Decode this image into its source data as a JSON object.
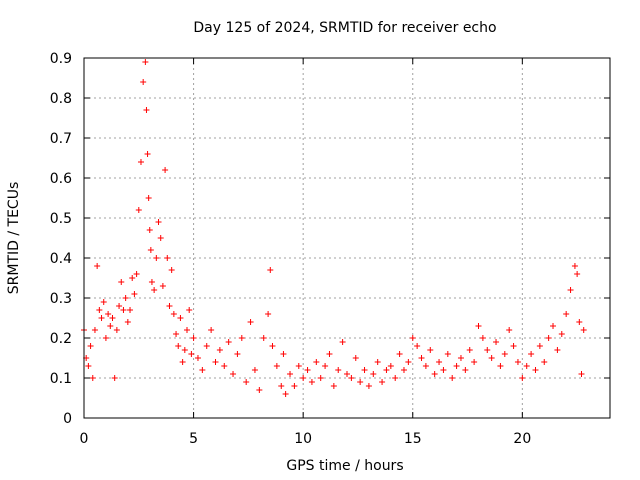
{
  "chart_data": {
    "type": "scatter",
    "title": "Day 125 of 2024, SRMTID for receiver echo",
    "xlabel": "GPS time / hours",
    "ylabel": "SRMTID / TECUs",
    "xlim": [
      0,
      24
    ],
    "ylim": [
      0,
      0.9
    ],
    "xticks": [
      0,
      5,
      10,
      15,
      20
    ],
    "yticks": [
      0,
      0.1,
      0.2,
      0.3,
      0.4,
      0.5,
      0.6,
      0.7,
      0.8,
      0.9
    ],
    "xtick_labels": [
      "0",
      "5",
      "10",
      "15",
      "20"
    ],
    "ytick_labels": [
      "0",
      "0.1",
      "0.2",
      "0.3",
      "0.4",
      "0.5",
      "0.6",
      "0.7",
      "0.8",
      "0.9"
    ],
    "grid": true,
    "marker": "+",
    "color": "#ff0000",
    "series": [
      {
        "name": "SRMTID",
        "x": [
          0.0,
          0.1,
          0.2,
          0.3,
          0.4,
          0.5,
          0.6,
          0.7,
          0.8,
          0.9,
          1.0,
          1.1,
          1.2,
          1.3,
          1.4,
          1.5,
          1.6,
          1.7,
          1.8,
          1.9,
          2.0,
          2.1,
          2.2,
          2.3,
          2.4,
          2.5,
          2.6,
          2.7,
          2.8,
          2.85,
          2.9,
          2.95,
          3.0,
          3.05,
          3.1,
          3.2,
          3.3,
          3.4,
          3.5,
          3.6,
          3.7,
          3.8,
          3.9,
          4.0,
          4.1,
          4.2,
          4.3,
          4.4,
          4.5,
          4.6,
          4.7,
          4.8,
          4.9,
          5.0,
          5.2,
          5.4,
          5.6,
          5.8,
          6.0,
          6.2,
          6.4,
          6.6,
          6.8,
          7.0,
          7.2,
          7.4,
          7.6,
          7.8,
          8.0,
          8.2,
          8.4,
          8.5,
          8.6,
          8.8,
          9.0,
          9.1,
          9.2,
          9.4,
          9.6,
          9.8,
          10.0,
          10.2,
          10.4,
          10.6,
          10.8,
          11.0,
          11.2,
          11.4,
          11.6,
          11.8,
          12.0,
          12.2,
          12.4,
          12.6,
          12.8,
          13.0,
          13.2,
          13.4,
          13.6,
          13.8,
          14.0,
          14.2,
          14.4,
          14.6,
          14.8,
          15.0,
          15.2,
          15.4,
          15.6,
          15.8,
          16.0,
          16.2,
          16.4,
          16.6,
          16.8,
          17.0,
          17.2,
          17.4,
          17.6,
          17.8,
          18.0,
          18.2,
          18.4,
          18.6,
          18.8,
          19.0,
          19.2,
          19.4,
          19.6,
          19.8,
          20.0,
          20.2,
          20.4,
          20.6,
          20.8,
          21.0,
          21.2,
          21.4,
          21.6,
          21.8,
          22.0,
          22.2,
          22.4,
          22.5,
          22.6,
          22.7,
          22.8
        ],
        "y": [
          0.22,
          0.15,
          0.13,
          0.18,
          0.1,
          0.22,
          0.38,
          0.27,
          0.25,
          0.29,
          0.2,
          0.26,
          0.23,
          0.25,
          0.1,
          0.22,
          0.28,
          0.34,
          0.27,
          0.3,
          0.24,
          0.27,
          0.35,
          0.31,
          0.36,
          0.52,
          0.64,
          0.84,
          0.89,
          0.77,
          0.66,
          0.55,
          0.47,
          0.42,
          0.34,
          0.32,
          0.4,
          0.49,
          0.45,
          0.33,
          0.62,
          0.4,
          0.28,
          0.37,
          0.26,
          0.21,
          0.18,
          0.25,
          0.14,
          0.17,
          0.22,
          0.27,
          0.16,
          0.2,
          0.15,
          0.12,
          0.18,
          0.22,
          0.14,
          0.17,
          0.13,
          0.19,
          0.11,
          0.16,
          0.2,
          0.09,
          0.24,
          0.12,
          0.07,
          0.2,
          0.26,
          0.37,
          0.18,
          0.13,
          0.08,
          0.16,
          0.06,
          0.11,
          0.08,
          0.13,
          0.1,
          0.12,
          0.09,
          0.14,
          0.1,
          0.13,
          0.16,
          0.08,
          0.12,
          0.19,
          0.11,
          0.1,
          0.15,
          0.09,
          0.12,
          0.08,
          0.11,
          0.14,
          0.09,
          0.12,
          0.13,
          0.1,
          0.16,
          0.12,
          0.14,
          0.2,
          0.18,
          0.15,
          0.13,
          0.17,
          0.11,
          0.14,
          0.12,
          0.16,
          0.1,
          0.13,
          0.15,
          0.12,
          0.17,
          0.14,
          0.23,
          0.2,
          0.17,
          0.15,
          0.19,
          0.13,
          0.16,
          0.22,
          0.18,
          0.14,
          0.1,
          0.13,
          0.16,
          0.12,
          0.18,
          0.14,
          0.2,
          0.23,
          0.17,
          0.21,
          0.26,
          0.32,
          0.38,
          0.36,
          0.24,
          0.11,
          0.22
        ]
      }
    ]
  }
}
